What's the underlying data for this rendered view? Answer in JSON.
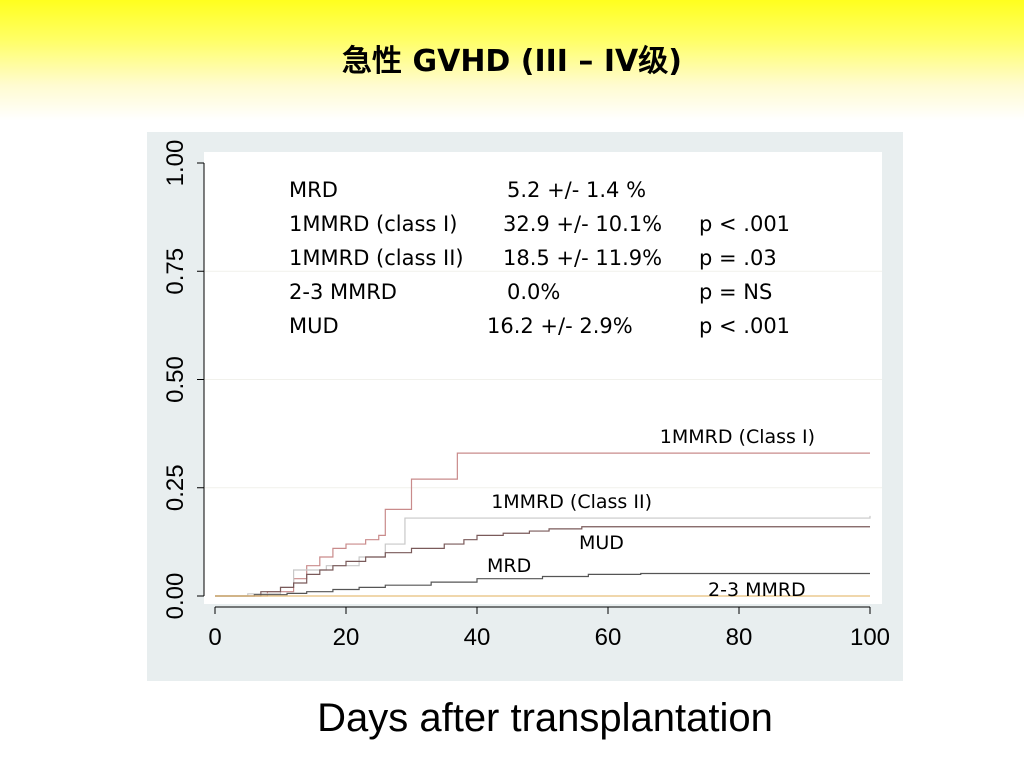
{
  "slide": {
    "title": "急性 GVHD (III – IV级)"
  },
  "chart_data": {
    "type": "line",
    "title": "急性 GVHD (III – IV级)",
    "xlabel": "Days after transplantation",
    "ylabel": "",
    "xlim": [
      0,
      100
    ],
    "ylim": [
      0,
      1
    ],
    "x_ticks": [
      "0",
      "20",
      "40",
      "60",
      "80",
      "100"
    ],
    "y_ticks": [
      "0.00",
      "0.25",
      "0.50",
      "0.75",
      "1.00"
    ],
    "grid": true,
    "stats_table": [
      {
        "group": "MRD",
        "estimate": "5.2 +/- 1.4 %",
        "p": ""
      },
      {
        "group": "1MMRD (class I)",
        "estimate": "32.9 +/- 10.1%",
        "p": "p < .001"
      },
      {
        "group": "1MMRD (class II)",
        "estimate": "18.5 +/- 11.9%",
        "p": "p = .03"
      },
      {
        "group": "2-3 MMRD",
        "estimate": "0.0%",
        "p": "p = NS"
      },
      {
        "group": "MUD",
        "estimate": "16.2 +/- 2.9%",
        "p": "p < .001"
      }
    ],
    "series": [
      {
        "name": "1MMRD (Class I)",
        "color": "#c98b8b",
        "x": [
          0,
          8,
          12,
          14,
          16,
          18,
          20,
          23,
          25,
          26,
          30,
          37,
          100
        ],
        "y": [
          0,
          0.01,
          0.04,
          0.07,
          0.09,
          0.11,
          0.12,
          0.13,
          0.14,
          0.2,
          0.27,
          0.33,
          0.33
        ]
      },
      {
        "name": "1MMRD (Class II)",
        "color": "#c8c8c8",
        "x": [
          0,
          5,
          10,
          12,
          17,
          22,
          26,
          29,
          100
        ],
        "y": [
          0,
          0.005,
          0.02,
          0.06,
          0.07,
          0.09,
          0.12,
          0.18,
          0.185
        ]
      },
      {
        "name": "MUD",
        "color": "#7a5a5a",
        "x": [
          0,
          7,
          10,
          12,
          14,
          16,
          18,
          20,
          23,
          26,
          30,
          35,
          38,
          40,
          44,
          48,
          51,
          56,
          100
        ],
        "y": [
          0,
          0.01,
          0.02,
          0.03,
          0.05,
          0.06,
          0.07,
          0.08,
          0.09,
          0.1,
          0.11,
          0.12,
          0.13,
          0.14,
          0.145,
          0.15,
          0.155,
          0.16,
          0.16
        ]
      },
      {
        "name": "MRD",
        "color": "#555555",
        "x": [
          0,
          6,
          11,
          14,
          18,
          22,
          26,
          33,
          40,
          50,
          57,
          65,
          100
        ],
        "y": [
          0,
          0.003,
          0.006,
          0.01,
          0.015,
          0.02,
          0.025,
          0.032,
          0.04,
          0.045,
          0.05,
          0.052,
          0.052
        ]
      },
      {
        "name": "2-3 MMRD",
        "color": "#e7bf7a",
        "x": [
          0,
          100
        ],
        "y": [
          0,
          0
        ]
      }
    ]
  }
}
